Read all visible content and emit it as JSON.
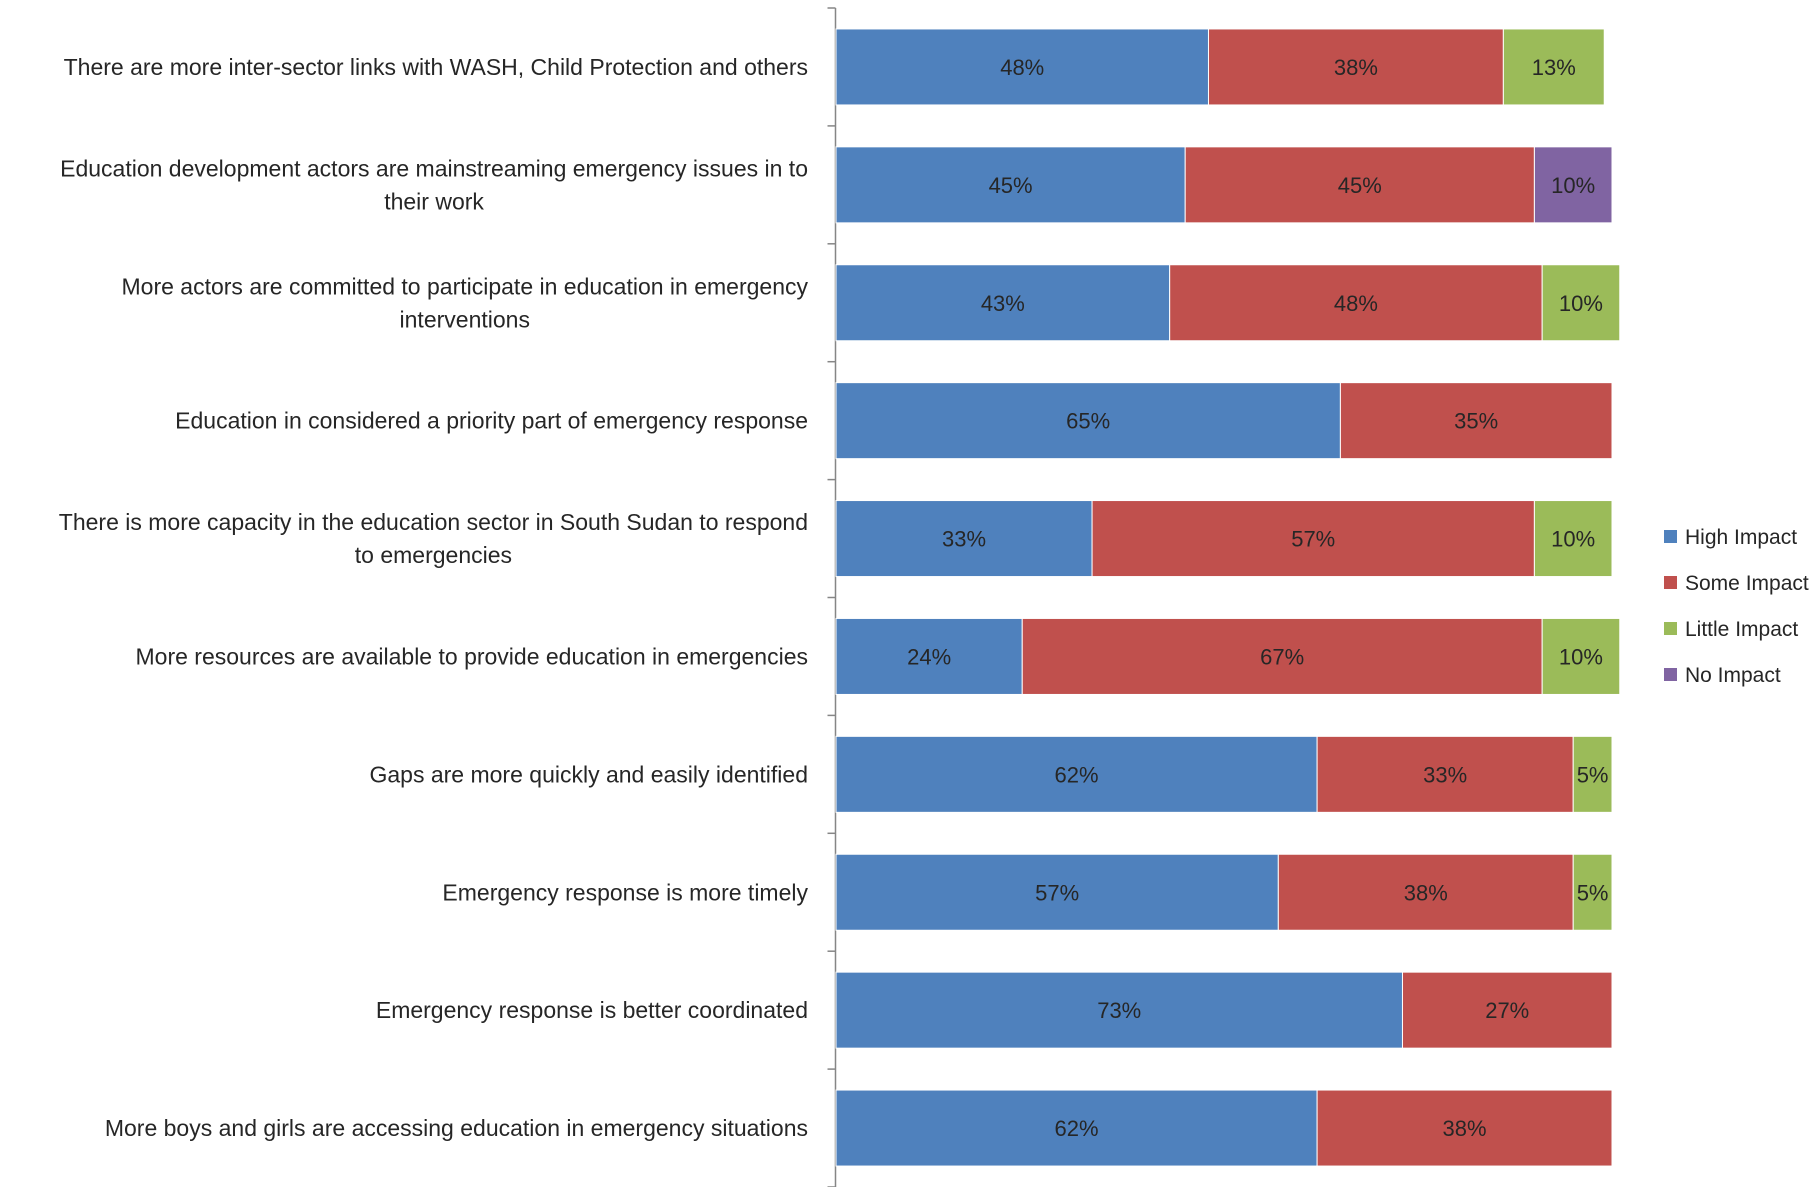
{
  "chart_data": {
    "type": "bar",
    "orientation": "horizontal",
    "stacked": "100%",
    "grid": false,
    "legend_position": "right",
    "categories": [
      "There are more inter-sector links with WASH, Child Protection and others",
      "Education development actors are mainstreaming emergency issues in to their work",
      "More actors are committed to participate in education in emergency interventions",
      "Education in considered a priority part of emergency response",
      "There is more capacity in the education sector in South Sudan to respond to emergencies",
      "More resources are available to provide education in emergencies",
      "Gaps are more quickly and easily identified",
      "Emergency response is more timely",
      "Emergency response is better coordinated",
      "More boys and girls are accessing education in emergency situations"
    ],
    "category_lines": [
      [
        "There are more inter-sector links with WASH, Child Protection and others"
      ],
      [
        "Education development actors are mainstreaming emergency issues in to",
        "their work"
      ],
      [
        "More actors are committed to participate in education in emergency",
        "interventions"
      ],
      [
        "Education in considered a priority part of emergency response"
      ],
      [
        "There is more capacity in the education sector in South Sudan to respond",
        "to emergencies"
      ],
      [
        "More resources are available to provide education in emergencies"
      ],
      [
        "Gaps are more quickly and easily identified"
      ],
      [
        "Emergency response is more timely"
      ],
      [
        "Emergency response is better coordinated"
      ],
      [
        "More boys and girls are accessing education in emergency situations"
      ]
    ],
    "series": [
      {
        "name": "High Impact",
        "color": "#4f81bd",
        "values": [
          48,
          45,
          43,
          65,
          33,
          24,
          62,
          57,
          73,
          62
        ]
      },
      {
        "name": "Some Impact",
        "color": "#c0504d",
        "values": [
          38,
          45,
          48,
          35,
          57,
          67,
          33,
          38,
          27,
          38
        ]
      },
      {
        "name": "Little Impact",
        "color": "#9bbb59",
        "values": [
          13,
          0,
          10,
          0,
          10,
          10,
          5,
          5,
          0,
          0
        ]
      },
      {
        "name": "No Impact",
        "color": "#8064a2",
        "values": [
          0,
          10,
          0,
          0,
          0,
          0,
          0,
          0,
          0,
          0
        ]
      }
    ],
    "value_suffix": "%",
    "xlim": [
      0,
      100
    ]
  }
}
